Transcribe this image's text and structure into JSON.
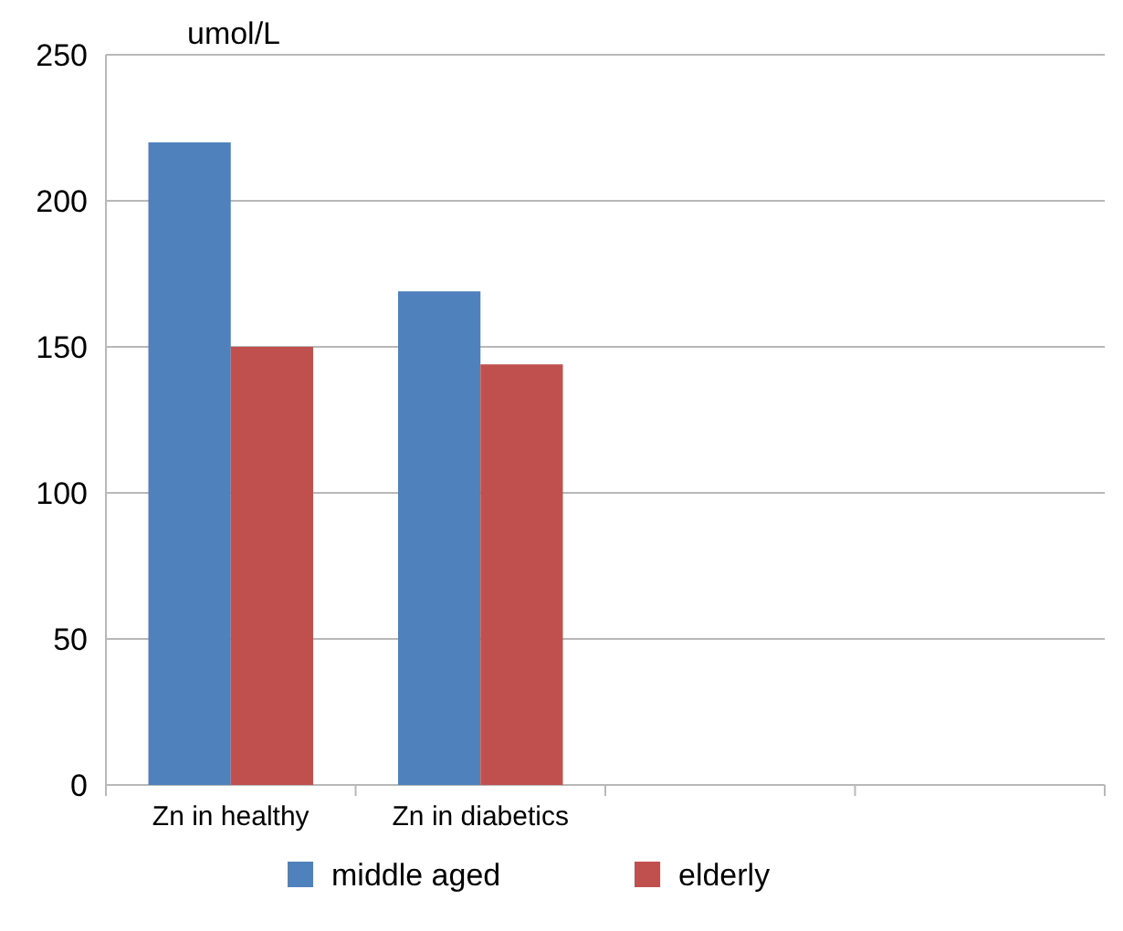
{
  "chart_data": {
    "type": "bar",
    "ylabel": "umol/L",
    "categories": [
      "Zn in healthy",
      "Zn in diabetics",
      null,
      null
    ],
    "series": [
      {
        "name": "middle aged",
        "color": "#4f81bd",
        "values": [
          220,
          169,
          null,
          null
        ]
      },
      {
        "name": "elderly",
        "color": "#c0504d",
        "values": [
          150,
          144,
          null,
          null
        ]
      }
    ],
    "ylim": [
      0,
      250
    ],
    "yticks": [
      0,
      50,
      100,
      150,
      200,
      250
    ],
    "grid": "y",
    "legend": "bottom"
  }
}
